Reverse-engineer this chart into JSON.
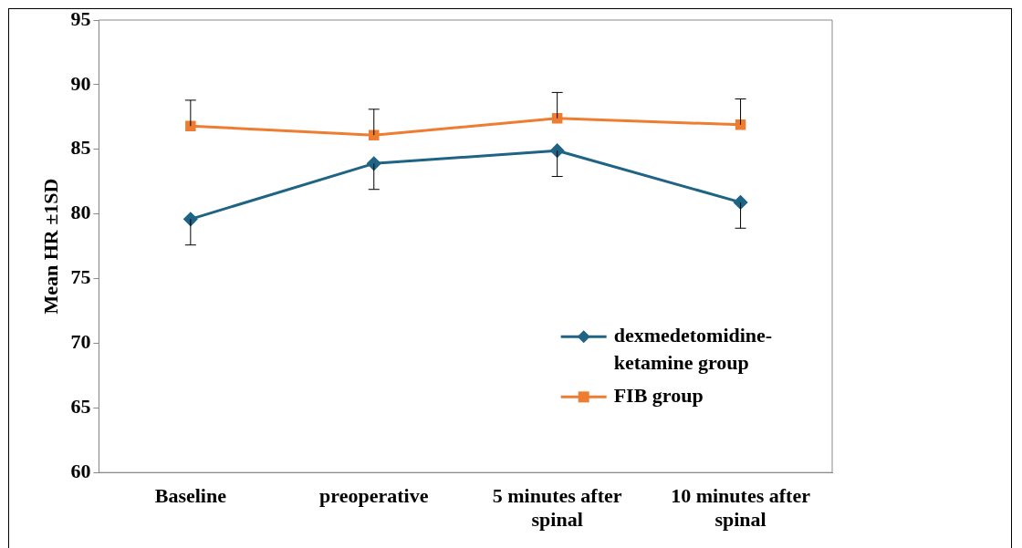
{
  "chart_data": {
    "type": "line",
    "ylabel": "Mean HR ±1SD",
    "categories": [
      "Baseline",
      "preoperative",
      "5 minutes after spinal",
      "10 minutes after spinal"
    ],
    "series": [
      {
        "name": "dexmedetomidine-ketamine group",
        "color": "#1f6385",
        "marker": "diamond",
        "values": [
          79.6,
          83.9,
          84.9,
          80.9
        ],
        "errors": [
          [
            77.6,
            79.6
          ],
          [
            81.9,
            83.9
          ],
          [
            82.9,
            84.9
          ],
          [
            78.9,
            80.9
          ]
        ]
      },
      {
        "name": "FIB group",
        "color": "#ee7d31",
        "marker": "square",
        "values": [
          86.8,
          86.1,
          87.4,
          86.9
        ],
        "errors": [
          [
            86.8,
            88.8
          ],
          [
            86.1,
            88.1
          ],
          [
            87.4,
            89.4
          ],
          [
            86.9,
            88.9
          ]
        ]
      }
    ],
    "ylim": [
      60,
      95
    ],
    "yticks": [
      60,
      65,
      70,
      75,
      80,
      85,
      90,
      95
    ],
    "grid": false,
    "legend": "right"
  }
}
